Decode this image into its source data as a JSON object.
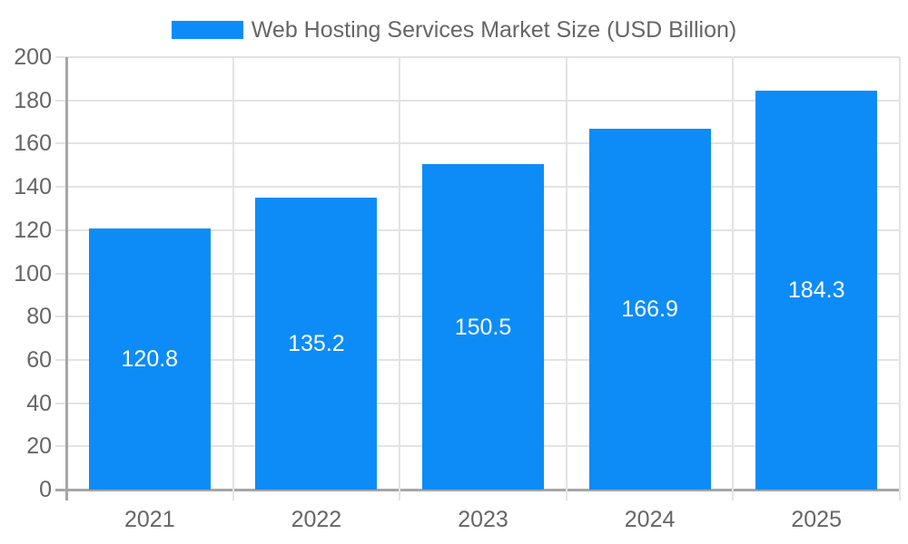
{
  "legend": {
    "items": [
      {
        "label": "Web Hosting Services Market Size (USD Billion)",
        "color": "#0d8cf7"
      }
    ]
  },
  "chart_data": {
    "type": "bar",
    "title": "Web Hosting Services Market Size (USD Billion)",
    "categories": [
      "2021",
      "2022",
      "2023",
      "2024",
      "2025"
    ],
    "series": [
      {
        "name": "Web Hosting Services Market Size (USD Billion)",
        "color": "#0d8cf7",
        "values": [
          120.8,
          135.2,
          150.5,
          166.9,
          184.3
        ]
      }
    ],
    "value_labels": [
      "120.8",
      "135.2",
      "150.5",
      "166.9",
      "184.3"
    ],
    "value_label_position": "inside-center",
    "value_label_color": "#ffffff",
    "xlabel": "",
    "ylabel": "",
    "ylim": [
      0,
      200
    ],
    "yticks": [
      0,
      20,
      40,
      60,
      80,
      100,
      120,
      140,
      160,
      180,
      200
    ],
    "grid": "both",
    "legend_position": "top",
    "colors": {
      "grid": "#e3e3e3",
      "axis": "#a6a6a6",
      "text": "#666666",
      "background": "#ffffff"
    }
  }
}
